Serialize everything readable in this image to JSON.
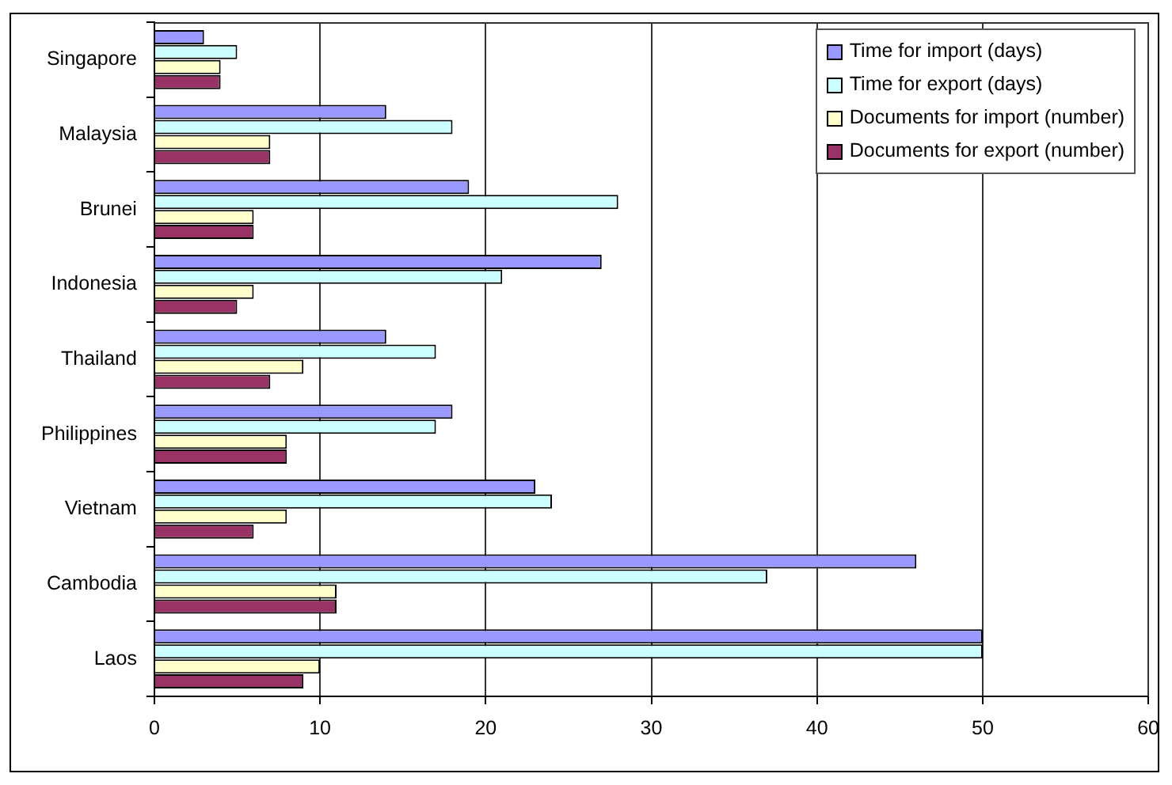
{
  "chart_data": {
    "type": "bar",
    "orientation": "horizontal",
    "categories": [
      "Singapore",
      "Malaysia",
      "Brunei",
      "Indonesia",
      "Thailand",
      "Philippines",
      "Vietnam",
      "Cambodia",
      "Laos"
    ],
    "series": [
      {
        "name": "Time for import (days)",
        "color": "#9999ff",
        "values": [
          3,
          14,
          19,
          27,
          14,
          18,
          23,
          46,
          50
        ]
      },
      {
        "name": "Time for export (days)",
        "color": "#ccffff",
        "values": [
          5,
          18,
          28,
          21,
          17,
          17,
          24,
          37,
          50
        ]
      },
      {
        "name": "Documents for import (number)",
        "color": "#ffffcc",
        "values": [
          4,
          7,
          6,
          6,
          9,
          8,
          8,
          11,
          10
        ]
      },
      {
        "name": "Documents for export (number)",
        "color": "#993366",
        "values": [
          4,
          7,
          6,
          5,
          7,
          8,
          6,
          11,
          9
        ]
      }
    ],
    "xlim": [
      0,
      60
    ],
    "xticks": [
      0,
      10,
      20,
      30,
      40,
      50,
      60
    ],
    "grid": "x",
    "legend": "top right"
  }
}
